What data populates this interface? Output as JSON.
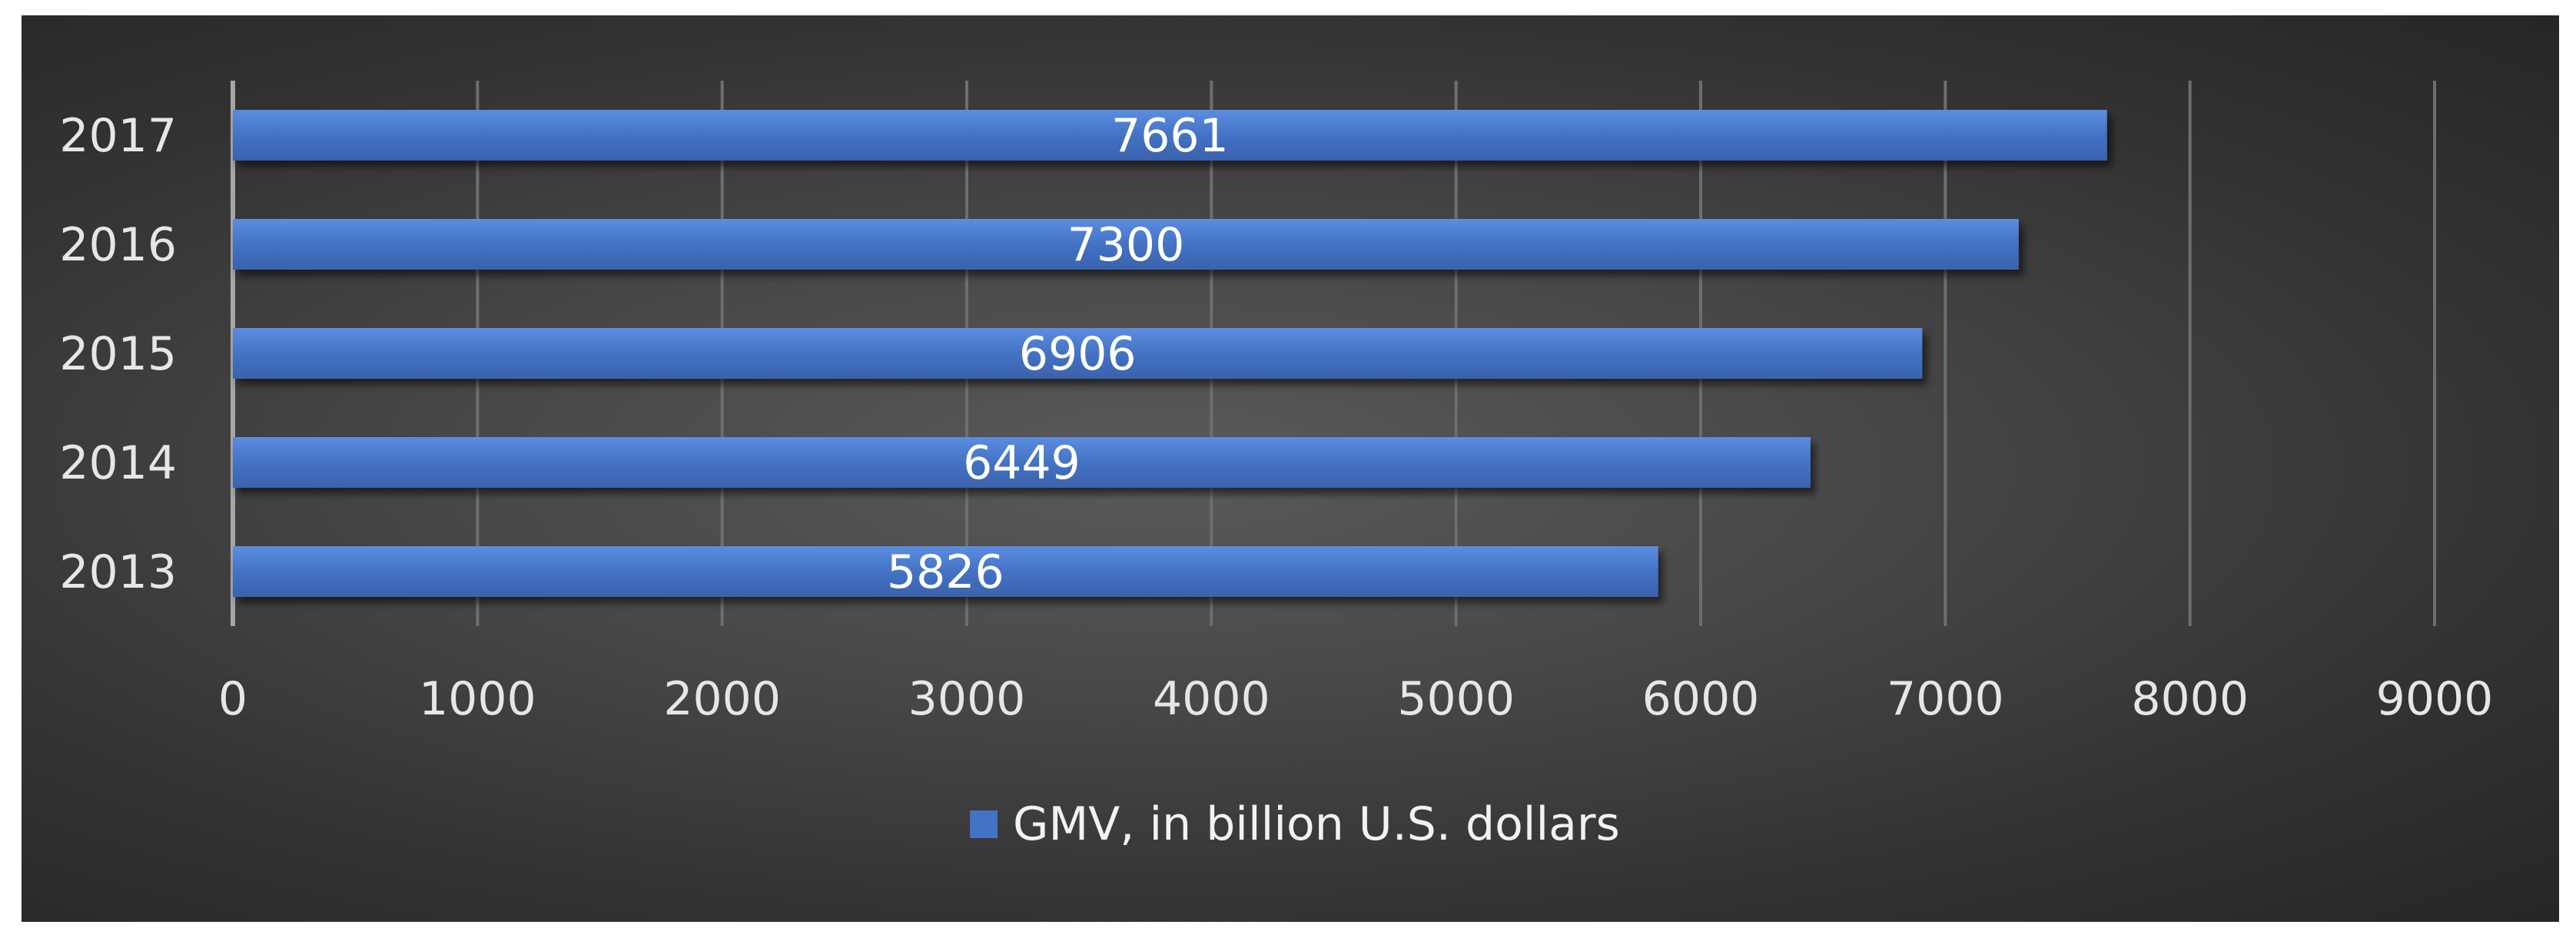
{
  "chart_data": {
    "type": "bar",
    "orientation": "horizontal",
    "categories": [
      "2017",
      "2016",
      "2015",
      "2014",
      "2013"
    ],
    "series": [
      {
        "name": "GMV, in billion U.S. dollars",
        "values": [
          7661,
          7300,
          6906,
          6449,
          5826
        ],
        "color": "#4472c4"
      }
    ],
    "xlim": [
      0,
      9000
    ],
    "xticks": [
      0,
      1000,
      2000,
      3000,
      4000,
      5000,
      6000,
      7000,
      8000,
      9000
    ],
    "grid": true,
    "legend_position": "bottom",
    "data_labels": true,
    "background_color": "#3f3f3f"
  }
}
